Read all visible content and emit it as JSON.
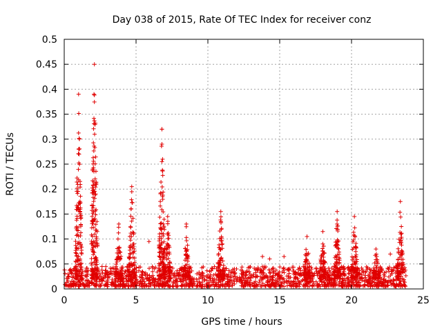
{
  "chart_data": {
    "type": "scatter",
    "title": "Day 038 of 2015, Rate Of TEC Index for receiver conz",
    "xlabel": "GPS time / hours",
    "ylabel": "ROTI / TECUs",
    "xlim": [
      0,
      25
    ],
    "ylim": [
      0,
      0.5
    ],
    "x_ticks": [
      0,
      5,
      10,
      15,
      20,
      25
    ],
    "y_ticks": [
      0,
      0.05,
      0.1,
      0.15,
      0.2,
      0.25,
      0.3,
      0.35,
      0.4,
      0.45,
      0.5
    ],
    "x_tick_labels": [
      "0",
      "5",
      "10",
      "15",
      "20",
      "25"
    ],
    "y_tick_labels": [
      "0",
      "0.05",
      "0.1",
      "0.15",
      "0.2",
      "0.25",
      "0.3",
      "0.35",
      "0.4",
      "0.45",
      "0.5"
    ],
    "grid": true,
    "marker": "+",
    "marker_color": "#e00000",
    "baseline": {
      "x_range": [
        0,
        23.8
      ],
      "y_range": [
        0.005,
        0.045
      ]
    },
    "peaks": [
      {
        "x": 1.0,
        "max_y": 0.39
      },
      {
        "x": 2.1,
        "max_y": 0.45
      },
      {
        "x": 3.8,
        "max_y": 0.13
      },
      {
        "x": 4.7,
        "max_y": 0.205
      },
      {
        "x": 6.8,
        "max_y": 0.32
      },
      {
        "x": 7.2,
        "max_y": 0.145
      },
      {
        "x": 8.5,
        "max_y": 0.13
      },
      {
        "x": 10.9,
        "max_y": 0.155
      },
      {
        "x": 16.9,
        "max_y": 0.105
      },
      {
        "x": 18.0,
        "max_y": 0.115
      },
      {
        "x": 19.0,
        "max_y": 0.155
      },
      {
        "x": 20.2,
        "max_y": 0.145
      },
      {
        "x": 21.7,
        "max_y": 0.08
      },
      {
        "x": 23.4,
        "max_y": 0.175
      }
    ],
    "isolated_points": [
      {
        "x": 6.8,
        "y": 0.32
      },
      {
        "x": 6.8,
        "y": 0.29
      },
      {
        "x": 6.8,
        "y": 0.255
      },
      {
        "x": 5.9,
        "y": 0.095
      },
      {
        "x": 13.8,
        "y": 0.065
      },
      {
        "x": 14.3,
        "y": 0.06
      },
      {
        "x": 15.3,
        "y": 0.065
      },
      {
        "x": 22.7,
        "y": 0.07
      }
    ]
  }
}
